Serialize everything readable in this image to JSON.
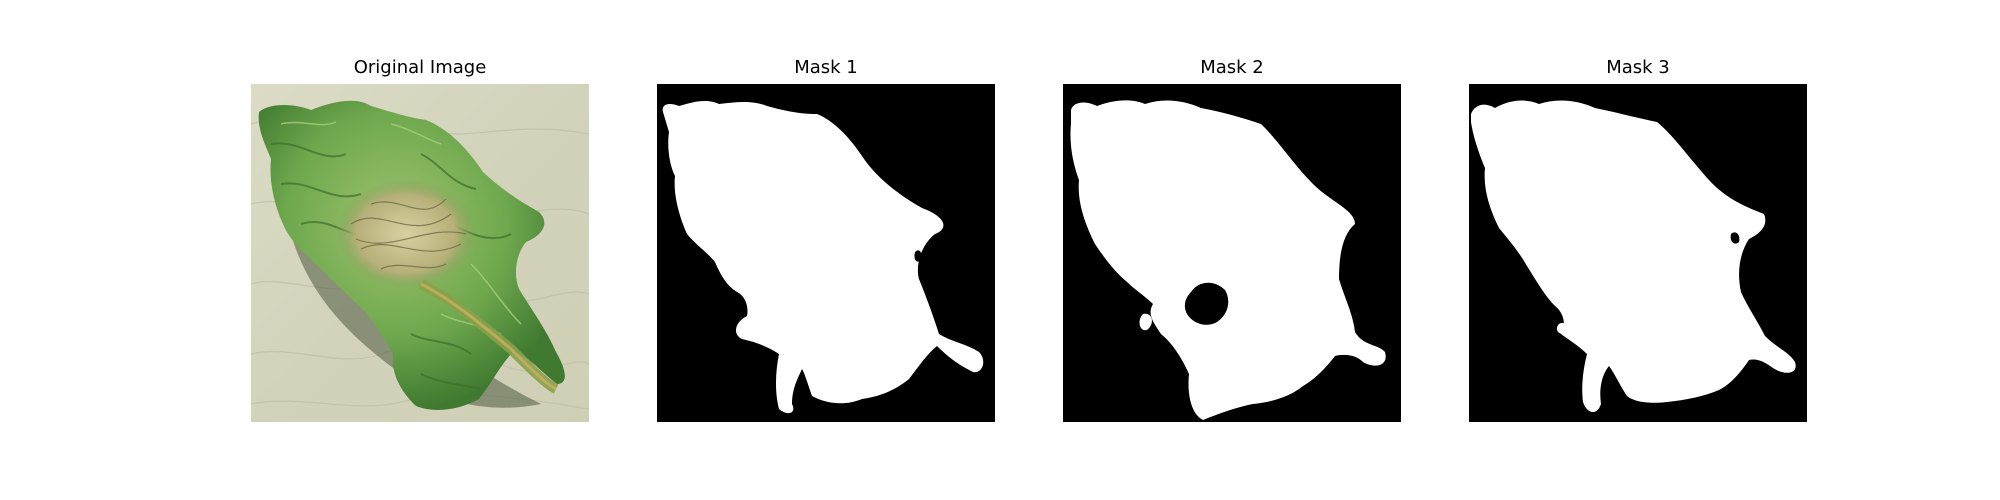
{
  "figure": {
    "panels": [
      {
        "title": "Original Image",
        "kind": "photo"
      },
      {
        "title": "Mask 1",
        "kind": "mask"
      },
      {
        "title": "Mask 2",
        "kind": "mask"
      },
      {
        "title": "Mask 3",
        "kind": "mask"
      }
    ]
  },
  "colors": {
    "background": "#ffffff",
    "mask_foreground": "#ffffff",
    "mask_background": "#000000",
    "leaf_green": "#6fa84e",
    "leaf_center": "#c8c08a",
    "paper": "#d6d6c0"
  }
}
